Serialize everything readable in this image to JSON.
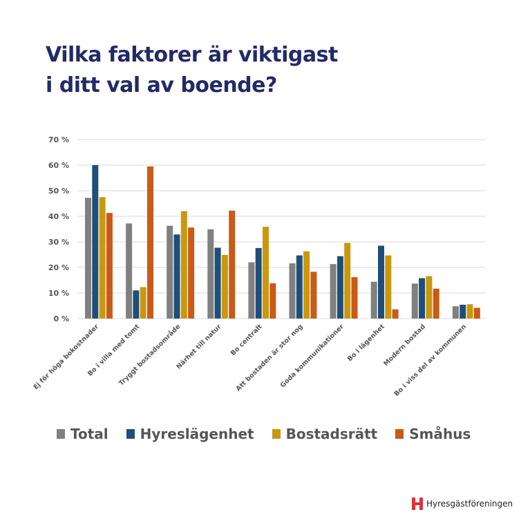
{
  "title_lines": [
    "Vilka faktorer är viktigast",
    "i ditt val av boende?"
  ],
  "chart_data": {
    "type": "bar",
    "title": "Vilka faktorer är viktigast i ditt val av boende?",
    "categories": [
      "Ej för höga bokostnader",
      "Bo i villa med tomt",
      "Tryggt bostadsområde",
      "Närhet till natur",
      "Bo centralt",
      "Att bostaden är stor nog",
      "Goda kommunikationer",
      "Bo i lägenhet",
      "Modern bostad",
      "Bo i viss del av kommunen"
    ],
    "series": [
      {
        "name": "Total",
        "color": "#808080",
        "values": [
          47.2,
          37.2,
          36.3,
          34.9,
          22.0,
          21.6,
          21.3,
          14.4,
          13.7,
          4.8
        ]
      },
      {
        "name": "Hyreslägenhet",
        "color": "#1f4e79",
        "values": [
          60.0,
          11.0,
          32.9,
          27.7,
          27.6,
          24.7,
          24.4,
          28.5,
          15.8,
          5.4
        ]
      },
      {
        "name": "Bostadsrätt",
        "color": "#c9980e",
        "values": [
          47.5,
          12.3,
          42.0,
          24.9,
          35.9,
          26.3,
          29.6,
          24.7,
          16.6,
          5.6
        ]
      },
      {
        "name": "Småhus",
        "color": "#c95a17",
        "values": [
          41.3,
          59.5,
          35.6,
          42.2,
          13.8,
          18.3,
          16.2,
          3.6,
          11.7,
          4.2
        ]
      }
    ],
    "yticks": [
      "0 %",
      "10 %",
      "20 %",
      "30 %",
      "40 %",
      "50 %",
      "60 %",
      "70 %"
    ],
    "ylim": [
      0,
      70
    ],
    "grid": true,
    "legend": "bottom",
    "xlabel": "",
    "ylabel": ""
  },
  "brand": {
    "name": "Hyresgästföreningen",
    "color": "#e0323c"
  }
}
